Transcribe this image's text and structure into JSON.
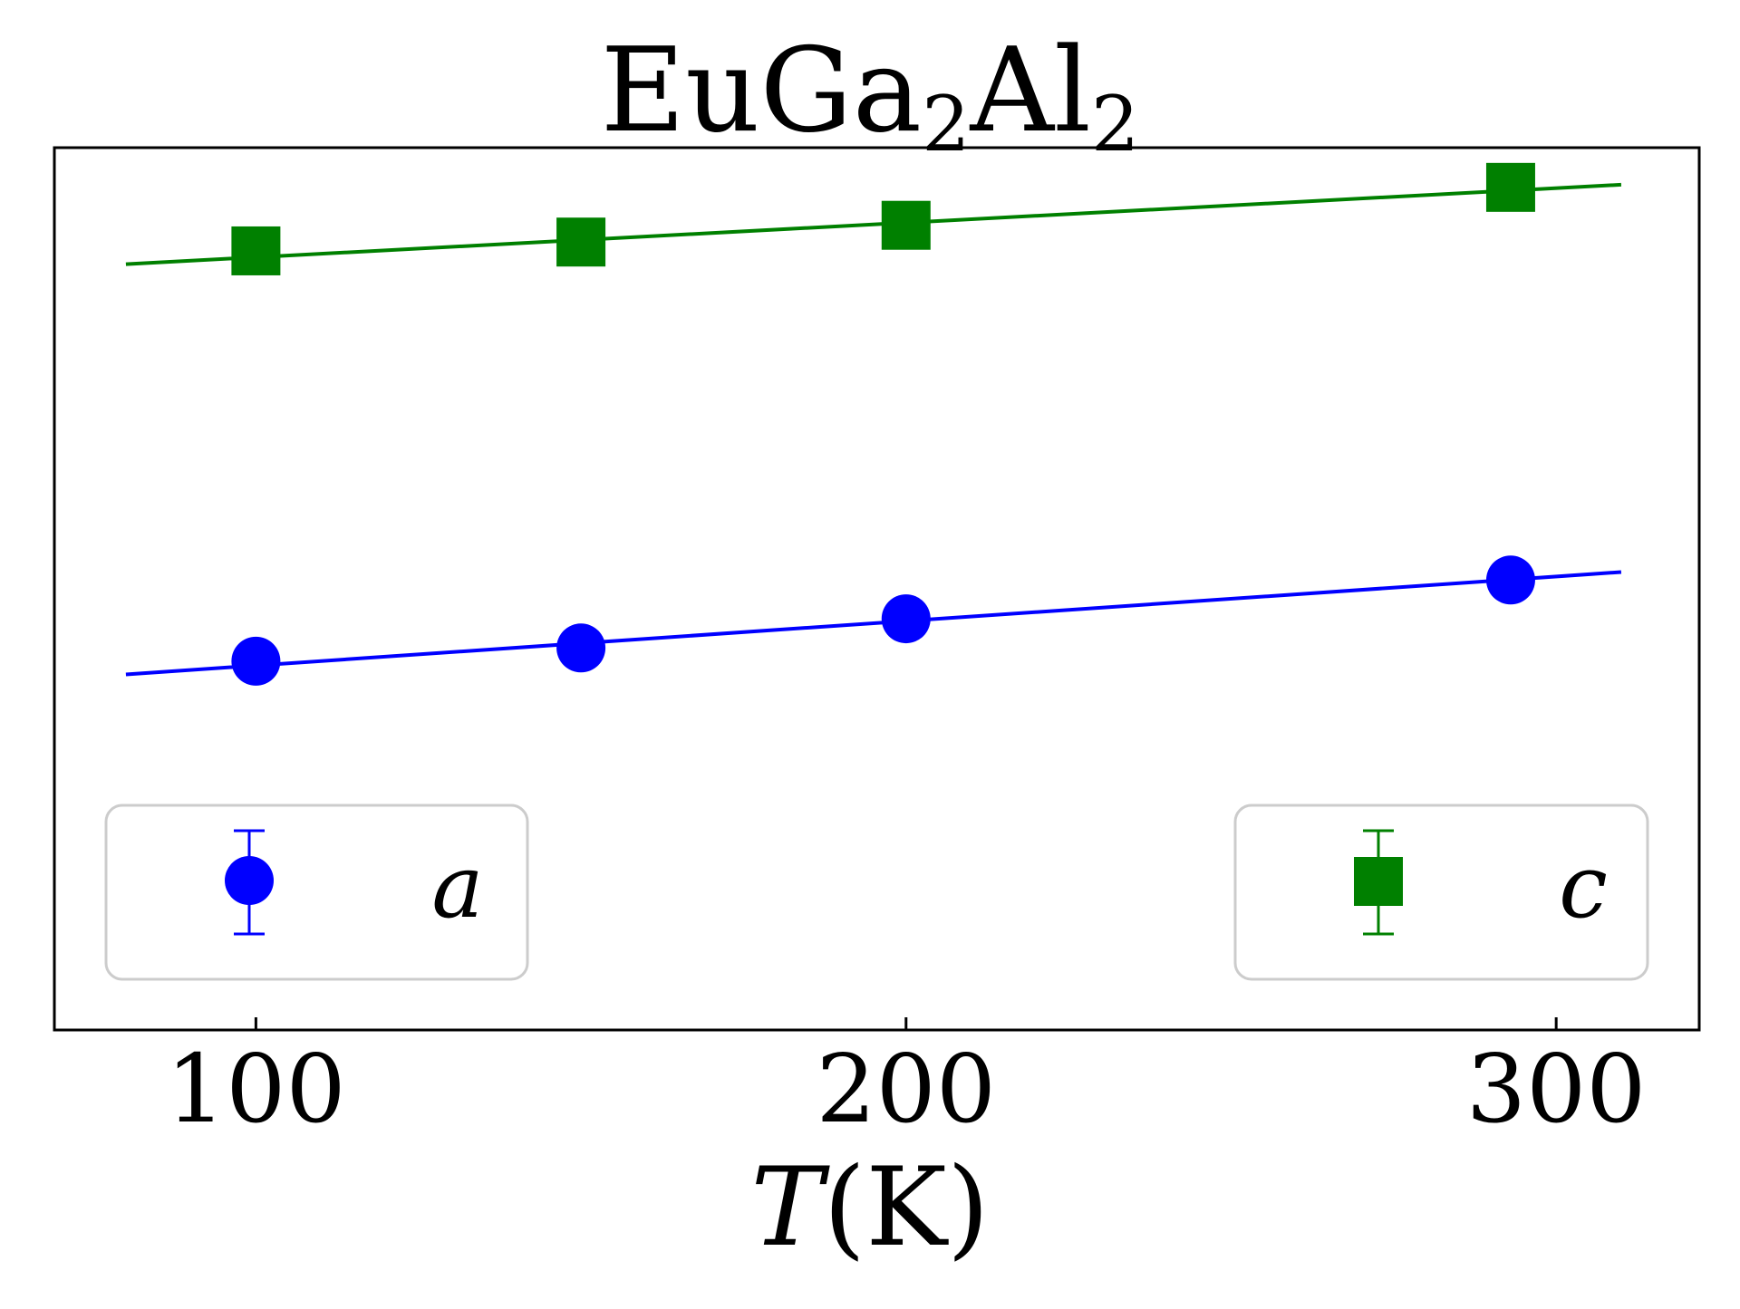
{
  "chart_data": {
    "type": "line",
    "title": {
      "parts": [
        {
          "text": "EuGa",
          "sub": false
        },
        {
          "text": "2",
          "sub": true
        },
        {
          "text": "Al",
          "sub": false
        },
        {
          "text": "2",
          "sub": true
        }
      ]
    },
    "xlabel": {
      "italic": "T",
      "rest": "(K)"
    },
    "ylabel": "",
    "xlim": [
      69,
      322
    ],
    "ylim": [
      0,
      1
    ],
    "x_ticks": [
      "100",
      "200",
      "300"
    ],
    "y_ticks_visible": false,
    "grid": false,
    "series": [
      {
        "name": "a",
        "color": "#0000ff",
        "marker": "circle",
        "x": [
          100,
          150,
          200,
          293
        ],
        "y": [
          0.418,
          0.433,
          0.466,
          0.51
        ],
        "fit": {
          "x": [
            80,
            310
          ],
          "y": [
            0.403,
            0.519
          ]
        }
      },
      {
        "name": "c",
        "color": "#008000",
        "marker": "square",
        "x": [
          100,
          150,
          200,
          293
        ],
        "y": [
          0.883,
          0.893,
          0.912,
          0.955
        ],
        "fit": {
          "x": [
            80,
            310
          ],
          "y": [
            0.868,
            0.958
          ]
        }
      }
    ],
    "legends": [
      {
        "series": "a",
        "position": "lower-left"
      },
      {
        "series": "c",
        "position": "lower-right"
      }
    ]
  }
}
